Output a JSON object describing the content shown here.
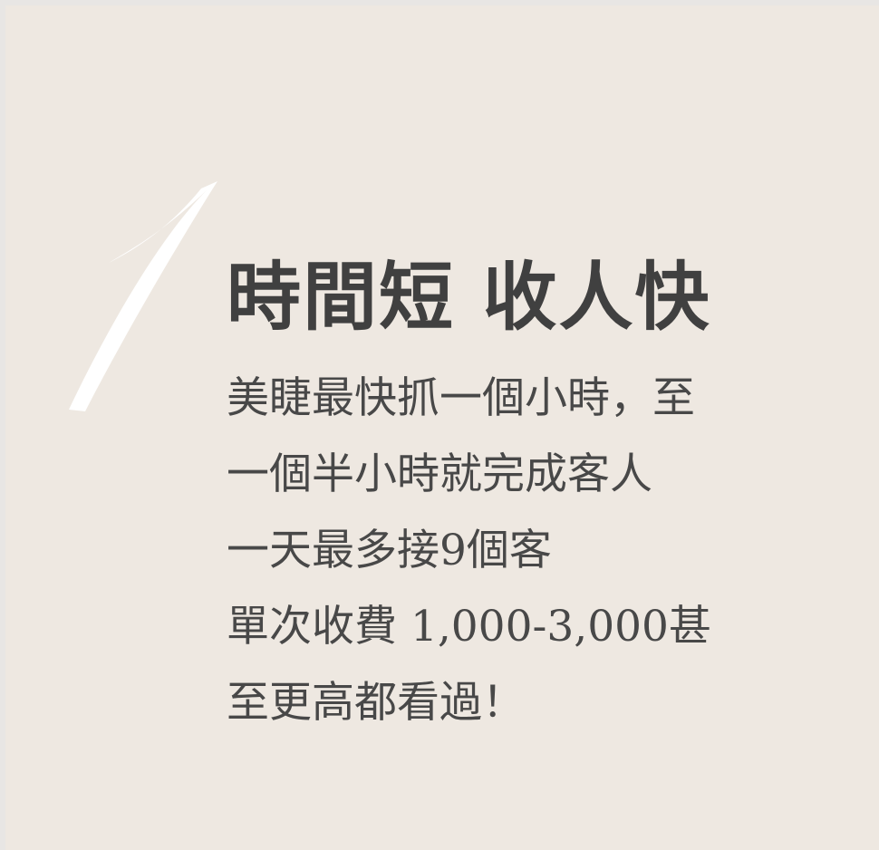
{
  "number": "1",
  "title": "時間短 收人快",
  "body_lines": [
    "美睫最快抓一個小時，至",
    "一個半小時就完成客人",
    "一天最多接9個客",
    "單次收費 1,000-3,000甚",
    "至更高都看過！"
  ],
  "colors": {
    "background": "#eee8e1",
    "outer_background": "#e8e6e4",
    "numeral": "#ffffff",
    "title": "#404040",
    "body": "#484848"
  }
}
